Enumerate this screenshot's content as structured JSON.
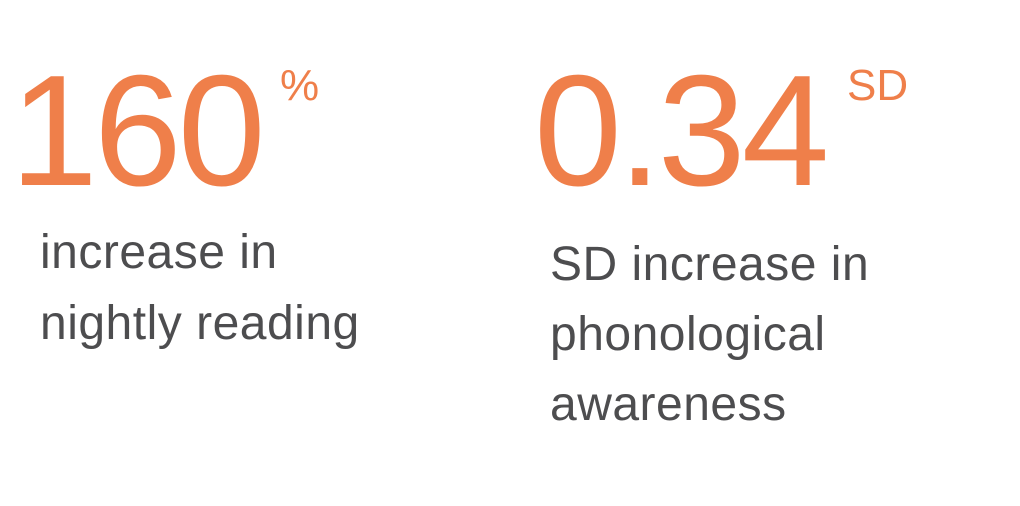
{
  "stats": [
    {
      "value": "160",
      "unit": "%",
      "description_lines": [
        "increase in",
        "nightly reading"
      ]
    },
    {
      "value": "0.34",
      "unit": "SD",
      "description_lines": [
        "SD increase in",
        "phonological",
        "awareness"
      ]
    }
  ],
  "colors": {
    "accent": "#ef7f4a",
    "text": "#4d4d4f",
    "background": "#ffffff"
  }
}
